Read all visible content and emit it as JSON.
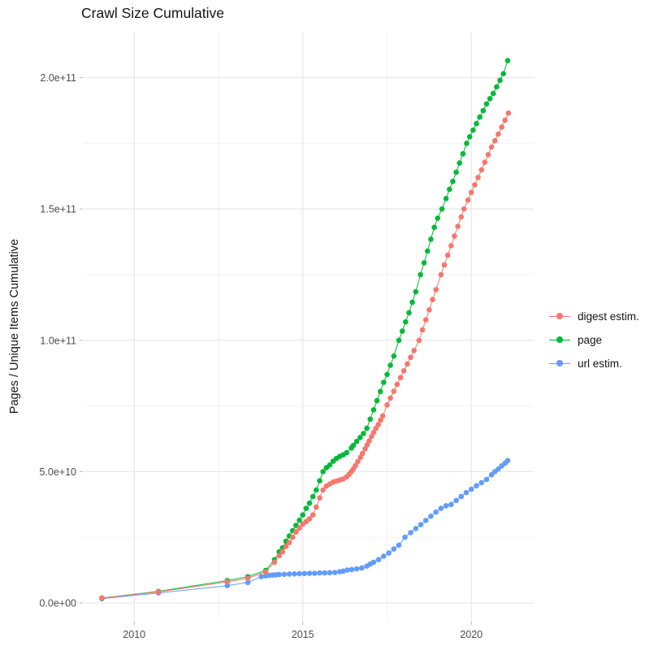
{
  "chart_data": {
    "type": "scatter",
    "title": "Crawl Size Cumulative",
    "xlabel": "",
    "ylabel": "Pages / Unique Items Cumulative",
    "legend_position": "right",
    "grid": true,
    "value_unit": "billions (1e9) of pages / unique items",
    "x_unit": "year",
    "xlim": [
      2008.5,
      2021.85
    ],
    "ylim": [
      -6.5,
      217.2
    ],
    "x_ticks": [
      {
        "value": 2010,
        "label": "2010"
      },
      {
        "value": 2015,
        "label": "2015"
      },
      {
        "value": 2020,
        "label": "2020"
      }
    ],
    "x_minor_ticks": [
      2012.5,
      2017.5
    ],
    "y_ticks": [
      {
        "value": 0,
        "label": "0.0e+00"
      },
      {
        "value": 50,
        "label": "5.0e+10"
      },
      {
        "value": 100,
        "label": "1.0e+11"
      },
      {
        "value": 150,
        "label": "1.5e+11"
      },
      {
        "value": 200,
        "label": "2.0e+11"
      }
    ],
    "y_minor_ticks": [
      25,
      75,
      125,
      175
    ],
    "series": [
      {
        "name": "digest estim.",
        "color": "#F8766D",
        "points": [
          [
            2009.04,
            1.9
          ],
          [
            2010.72,
            4.2
          ],
          [
            2012.76,
            8.0
          ],
          [
            2013.37,
            9.4
          ],
          [
            2013.9,
            11.8
          ],
          [
            2014.16,
            15.5
          ],
          [
            2014.3,
            18
          ],
          [
            2014.4,
            19.5
          ],
          [
            2014.5,
            21.5
          ],
          [
            2014.6,
            23
          ],
          [
            2014.7,
            25
          ],
          [
            2014.8,
            27
          ],
          [
            2014.9,
            28.5
          ],
          [
            2015.0,
            30
          ],
          [
            2015.1,
            31
          ],
          [
            2015.2,
            32
          ],
          [
            2015.3,
            33.5
          ],
          [
            2015.4,
            36.5
          ],
          [
            2015.5,
            40
          ],
          [
            2015.6,
            43
          ],
          [
            2015.7,
            44.5
          ],
          [
            2015.8,
            45.3
          ],
          [
            2015.9,
            46
          ],
          [
            2016.0,
            46.4
          ],
          [
            2016.1,
            46.8
          ],
          [
            2016.2,
            47.2
          ],
          [
            2016.3,
            48
          ],
          [
            2016.37,
            48.9
          ],
          [
            2016.44,
            50
          ],
          [
            2016.5,
            51
          ],
          [
            2016.56,
            52.3
          ],
          [
            2016.63,
            53.8
          ],
          [
            2016.71,
            55.4
          ],
          [
            2016.77,
            56.9
          ],
          [
            2016.85,
            58.7
          ],
          [
            2016.91,
            60.2
          ],
          [
            2016.97,
            61.7
          ],
          [
            2017.04,
            63.4
          ],
          [
            2017.1,
            64.9
          ],
          [
            2017.17,
            66.5
          ],
          [
            2017.24,
            67.9
          ],
          [
            2017.31,
            69.6
          ],
          [
            2017.37,
            71.2
          ],
          [
            2017.5,
            75.4
          ],
          [
            2017.6,
            78
          ],
          [
            2017.7,
            80.6
          ],
          [
            2017.8,
            83.2
          ],
          [
            2017.9,
            85.8
          ],
          [
            2018.0,
            88.4
          ],
          [
            2018.1,
            91
          ],
          [
            2018.2,
            93.5
          ],
          [
            2018.3,
            96.1
          ],
          [
            2018.45,
            100
          ],
          [
            2018.55,
            104
          ],
          [
            2018.65,
            107.8
          ],
          [
            2018.75,
            111.6
          ],
          [
            2018.85,
            115.5
          ],
          [
            2018.95,
            119.3
          ],
          [
            2019.1,
            125
          ],
          [
            2019.2,
            128.7
          ],
          [
            2019.3,
            132.4
          ],
          [
            2019.4,
            136
          ],
          [
            2019.5,
            139.7
          ],
          [
            2019.6,
            143.4
          ],
          [
            2019.7,
            147
          ],
          [
            2019.78,
            150
          ],
          [
            2019.9,
            153.4
          ],
          [
            2020.0,
            156.3
          ],
          [
            2020.1,
            159.2
          ],
          [
            2020.2,
            162
          ],
          [
            2020.3,
            164.9
          ],
          [
            2020.4,
            167.8
          ],
          [
            2020.5,
            170.7
          ],
          [
            2020.6,
            173.6
          ],
          [
            2020.7,
            176
          ],
          [
            2020.8,
            178.5
          ],
          [
            2020.9,
            181.2
          ],
          [
            2021.0,
            183.8
          ],
          [
            2021.1,
            186.5
          ]
        ]
      },
      {
        "name": "page",
        "color": "#00BA38",
        "points": [
          [
            2009.04,
            1.9
          ],
          [
            2010.72,
            4.4
          ],
          [
            2012.76,
            8.5
          ],
          [
            2013.37,
            10
          ],
          [
            2013.9,
            12.4
          ],
          [
            2014.16,
            16.5
          ],
          [
            2014.3,
            19.5
          ],
          [
            2014.4,
            21
          ],
          [
            2014.5,
            23.5
          ],
          [
            2014.6,
            25.5
          ],
          [
            2014.7,
            27.5
          ],
          [
            2014.8,
            29.5
          ],
          [
            2014.9,
            31.5
          ],
          [
            2015.0,
            33.5
          ],
          [
            2015.1,
            36
          ],
          [
            2015.2,
            38
          ],
          [
            2015.3,
            40.5
          ],
          [
            2015.4,
            43
          ],
          [
            2015.5,
            46.5
          ],
          [
            2015.6,
            50
          ],
          [
            2015.7,
            51.5
          ],
          [
            2015.8,
            52.5
          ],
          [
            2015.9,
            54
          ],
          [
            2016.0,
            55
          ],
          [
            2016.1,
            55.8
          ],
          [
            2016.2,
            56.4
          ],
          [
            2016.3,
            57.2
          ],
          [
            2016.44,
            59
          ],
          [
            2016.5,
            60
          ],
          [
            2016.6,
            61.5
          ],
          [
            2016.7,
            63
          ],
          [
            2016.8,
            64.5
          ],
          [
            2016.9,
            66.5
          ],
          [
            2017.0,
            70
          ],
          [
            2017.1,
            73.5
          ],
          [
            2017.2,
            77
          ],
          [
            2017.3,
            80.5
          ],
          [
            2017.4,
            84
          ],
          [
            2017.5,
            87
          ],
          [
            2017.6,
            90.5
          ],
          [
            2017.7,
            94
          ],
          [
            2017.85,
            100
          ],
          [
            2017.95,
            103.5
          ],
          [
            2018.05,
            107
          ],
          [
            2018.15,
            110.5
          ],
          [
            2018.25,
            114.5
          ],
          [
            2018.35,
            118.5
          ],
          [
            2018.49,
            125
          ],
          [
            2018.6,
            129.5
          ],
          [
            2018.7,
            134
          ],
          [
            2018.8,
            138.5
          ],
          [
            2018.9,
            143
          ],
          [
            2019.0,
            146.5
          ],
          [
            2019.13,
            150
          ],
          [
            2019.25,
            154
          ],
          [
            2019.35,
            157.5
          ],
          [
            2019.45,
            160.5
          ],
          [
            2019.55,
            164
          ],
          [
            2019.65,
            167.5
          ],
          [
            2019.75,
            171
          ],
          [
            2019.86,
            175
          ],
          [
            2019.95,
            177.5
          ],
          [
            2020.05,
            180
          ],
          [
            2020.15,
            182.5
          ],
          [
            2020.25,
            185
          ],
          [
            2020.35,
            187.5
          ],
          [
            2020.45,
            190
          ],
          [
            2020.55,
            192
          ],
          [
            2020.65,
            194
          ],
          [
            2020.75,
            196.5
          ],
          [
            2020.85,
            199
          ],
          [
            2020.95,
            201.5
          ],
          [
            2021.08,
            206.5
          ]
        ]
      },
      {
        "name": "url estim.",
        "color": "#619CFF",
        "points": [
          [
            2009.04,
            1.6
          ],
          [
            2010.72,
            3.8
          ],
          [
            2012.76,
            6.6
          ],
          [
            2013.37,
            7.8
          ],
          [
            2013.77,
            10
          ],
          [
            2013.9,
            10.3
          ],
          [
            2014.0,
            10.5
          ],
          [
            2014.1,
            10.6
          ],
          [
            2014.2,
            10.7
          ],
          [
            2014.3,
            10.8
          ],
          [
            2014.45,
            10.9
          ],
          [
            2014.6,
            11.0
          ],
          [
            2014.75,
            11.05
          ],
          [
            2014.9,
            11.1
          ],
          [
            2015.05,
            11.2
          ],
          [
            2015.2,
            11.25
          ],
          [
            2015.35,
            11.3
          ],
          [
            2015.5,
            11.4
          ],
          [
            2015.65,
            11.45
          ],
          [
            2015.8,
            11.5
          ],
          [
            2015.95,
            11.6
          ],
          [
            2016.1,
            11.9
          ],
          [
            2016.2,
            12.1
          ],
          [
            2016.32,
            12.5
          ],
          [
            2016.45,
            12.7
          ],
          [
            2016.6,
            13.0
          ],
          [
            2016.75,
            13.3
          ],
          [
            2016.9,
            14.0
          ],
          [
            2017.0,
            14.8
          ],
          [
            2017.1,
            15.5
          ],
          [
            2017.25,
            16.5
          ],
          [
            2017.4,
            17.8
          ],
          [
            2017.55,
            19.0
          ],
          [
            2017.7,
            20.5
          ],
          [
            2017.85,
            22.0
          ],
          [
            2018.03,
            25.0
          ],
          [
            2018.2,
            26.8
          ],
          [
            2018.35,
            28.3
          ],
          [
            2018.5,
            29.8
          ],
          [
            2018.65,
            31.4
          ],
          [
            2018.8,
            33.0
          ],
          [
            2018.95,
            34.6
          ],
          [
            2019.1,
            36.0
          ],
          [
            2019.25,
            37.0
          ],
          [
            2019.4,
            37.5
          ],
          [
            2019.55,
            39.0
          ],
          [
            2019.7,
            40.5
          ],
          [
            2019.85,
            42.0
          ],
          [
            2020.0,
            43.3
          ],
          [
            2020.15,
            44.6
          ],
          [
            2020.3,
            45.8
          ],
          [
            2020.45,
            47.0
          ],
          [
            2020.6,
            48.8
          ],
          [
            2020.7,
            50.0
          ],
          [
            2020.8,
            51.0
          ],
          [
            2020.9,
            52.2
          ],
          [
            2021.0,
            53.2
          ],
          [
            2021.08,
            54.2
          ]
        ]
      }
    ]
  }
}
